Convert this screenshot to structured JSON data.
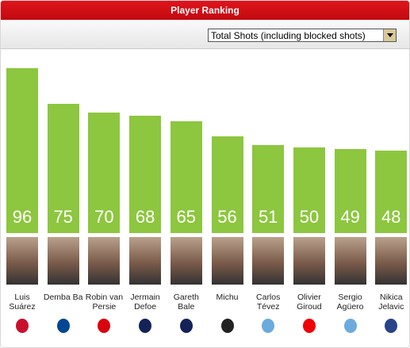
{
  "chart_data": {
    "type": "bar",
    "title": "Player Ranking",
    "metric": "Total Shots (including blocked shots)",
    "categories": [
      "Luis Suárez",
      "Demba Ba",
      "Robin van Persie",
      "Jermain Defoe",
      "Gareth Bale",
      "Michu",
      "Carlos Tévez",
      "Olivier Giroud",
      "Sergio Agüero",
      "Nikica Jelavic"
    ],
    "values": [
      96,
      75,
      70,
      68,
      65,
      56,
      51,
      50,
      49,
      48
    ],
    "color": "#8dc63f"
  }
}
